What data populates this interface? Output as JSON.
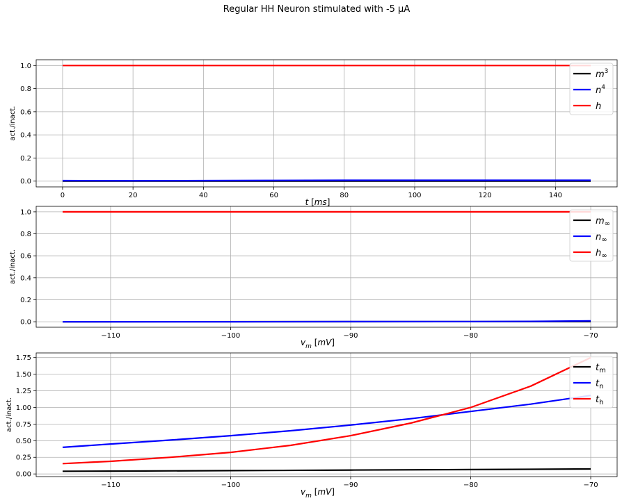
{
  "figure": {
    "title": "Regular HH Neuron stimulated with -5 µA"
  },
  "chart_data": [
    {
      "type": "line",
      "xlabel": "t [ms]",
      "ylabel": "act./inact.",
      "xlim": [
        -7.5,
        157.5
      ],
      "ylim": [
        -0.05,
        1.05
      ],
      "xticks": [
        0,
        20,
        40,
        60,
        80,
        100,
        120,
        140
      ],
      "yticks": [
        0.0,
        0.2,
        0.4,
        0.6,
        0.8,
        1.0
      ],
      "grid": true,
      "legend_position": "top-right",
      "legend": [
        {
          "label_main": "m",
          "label_sup": "3",
          "label_sub": "",
          "color": "#000000"
        },
        {
          "label_main": "n",
          "label_sup": "4",
          "label_sub": "",
          "color": "#0000ff"
        },
        {
          "label_main": "h",
          "label_sup": "",
          "label_sub": "",
          "color": "#ff0000"
        }
      ],
      "series": [
        {
          "color": "#000000",
          "x": [
            0,
            150
          ],
          "y": [
            0.0,
            0.0
          ]
        },
        {
          "color": "#0000ff",
          "x": [
            0,
            20,
            40,
            60,
            80,
            100,
            120,
            150
          ],
          "y": [
            0.004,
            0.003,
            0.004,
            0.006,
            0.007,
            0.007,
            0.007,
            0.007
          ]
        },
        {
          "color": "#ff0000",
          "x": [
            0,
            150
          ],
          "y": [
            1.0,
            1.0
          ]
        }
      ]
    },
    {
      "type": "line",
      "xlabel": "v_m [mV]",
      "ylabel": "act./inact.",
      "xlim": [
        -116.2,
        -67.8
      ],
      "ylim": [
        -0.05,
        1.05
      ],
      "xticks": [
        -110,
        -100,
        -90,
        -80,
        -70
      ],
      "xtick_labels": [
        "−110",
        "−100",
        "−90",
        "−80",
        "−70"
      ],
      "yticks": [
        0.0,
        0.2,
        0.4,
        0.6,
        0.8,
        1.0
      ],
      "grid": true,
      "legend_position": "top-right",
      "legend": [
        {
          "label_main": "m",
          "label_sup": "",
          "label_sub": "∞",
          "color": "#000000"
        },
        {
          "label_main": "n",
          "label_sup": "",
          "label_sub": "∞",
          "color": "#0000ff"
        },
        {
          "label_main": "h",
          "label_sup": "",
          "label_sub": "∞",
          "color": "#ff0000"
        }
      ],
      "series": [
        {
          "color": "#000000",
          "x": [
            -114,
            -70
          ],
          "y": [
            0.0,
            0.001
          ]
        },
        {
          "color": "#0000ff",
          "x": [
            -114,
            -100,
            -90,
            -80,
            -74,
            -70
          ],
          "y": [
            0.0,
            0.0,
            0.001,
            0.002,
            0.004,
            0.008
          ]
        },
        {
          "color": "#ff0000",
          "x": [
            -114,
            -70
          ],
          "y": [
            1.0,
            1.0
          ]
        }
      ]
    },
    {
      "type": "line",
      "xlabel": "v_m [mV]",
      "ylabel": "act./inact.",
      "xlim": [
        -116.2,
        -67.8
      ],
      "ylim": [
        -0.04,
        1.82
      ],
      "xticks": [
        -110,
        -100,
        -90,
        -80,
        -70
      ],
      "xtick_labels": [
        "−110",
        "−100",
        "−90",
        "−80",
        "−70"
      ],
      "yticks": [
        0.0,
        0.25,
        0.5,
        0.75,
        1.0,
        1.25,
        1.5,
        1.75
      ],
      "ytick_labels": [
        "0.00",
        "0.25",
        "0.50",
        "0.75",
        "1.00",
        "1.25",
        "1.50",
        "1.75"
      ],
      "grid": true,
      "legend_position": "top-right",
      "legend": [
        {
          "label_main": "t",
          "label_sup": "",
          "label_sub": "m",
          "color": "#000000"
        },
        {
          "label_main": "t",
          "label_sup": "",
          "label_sub": "n",
          "color": "#0000ff"
        },
        {
          "label_main": "t",
          "label_sup": "",
          "label_sub": "h",
          "color": "#ff0000"
        }
      ],
      "series": [
        {
          "color": "#000000",
          "x": [
            -114,
            -110,
            -100,
            -90,
            -80,
            -70
          ],
          "y": [
            0.04,
            0.043,
            0.05,
            0.058,
            0.066,
            0.075
          ]
        },
        {
          "color": "#0000ff",
          "x": [
            -114,
            -110,
            -105,
            -100,
            -95,
            -90,
            -85,
            -80,
            -75,
            -70
          ],
          "y": [
            0.4,
            0.45,
            0.51,
            0.575,
            0.65,
            0.735,
            0.83,
            0.94,
            1.05,
            1.18
          ]
        },
        {
          "color": "#ff0000",
          "x": [
            -114,
            -110,
            -105,
            -100,
            -95,
            -90,
            -85,
            -80,
            -75,
            -70
          ],
          "y": [
            0.155,
            0.19,
            0.25,
            0.325,
            0.43,
            0.575,
            0.765,
            1.0,
            1.32,
            1.75
          ]
        }
      ]
    }
  ]
}
